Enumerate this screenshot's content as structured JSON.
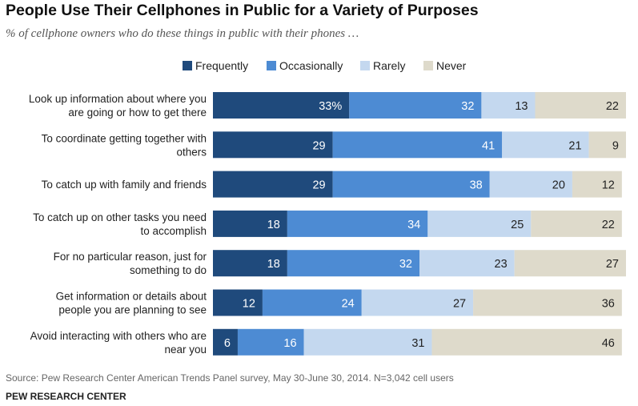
{
  "title": "People Use Their Cellphones in Public for a Variety of Purposes",
  "subtitle": "% of cellphone owners who do these things in public with their phones …",
  "source": "Source: Pew Research Center American Trends Panel survey, May 30-June 30, 2014. N=3,042 cell users",
  "organization": "PEW RESEARCH CENTER",
  "colors": {
    "Frequently": "#1f4a7c",
    "Occasionally": "#4d8bd3",
    "Rarely": "#c4d8ef",
    "Never": "#dedacb"
  },
  "chart_data": {
    "type": "bar",
    "orientation": "horizontal",
    "stacked": true,
    "xlim": [
      0,
      100
    ],
    "grid": false,
    "legend": "top-center",
    "categories": [
      [
        "Look up information about where you",
        "are going or how to get there"
      ],
      [
        "To coordinate getting together with",
        "others"
      ],
      [
        "To catch up with family and friends"
      ],
      [
        "To catch up on other tasks you need",
        "to accomplish"
      ],
      [
        "For no particular reason, just for",
        "something to do"
      ],
      [
        "Get information or details about",
        "people you are planning to see"
      ],
      [
        "Avoid interacting with others who are",
        "near you"
      ]
    ],
    "series": [
      {
        "name": "Frequently",
        "values": [
          33,
          29,
          29,
          18,
          18,
          12,
          6
        ],
        "labels": [
          "33%",
          "29",
          "29",
          "18",
          "18",
          "12",
          "6"
        ]
      },
      {
        "name": "Occasionally",
        "values": [
          32,
          41,
          38,
          34,
          32,
          24,
          16
        ],
        "labels": [
          "32",
          "41",
          "38",
          "34",
          "32",
          "24",
          "16"
        ]
      },
      {
        "name": "Rarely",
        "values": [
          13,
          21,
          20,
          25,
          23,
          27,
          31
        ],
        "labels": [
          "13",
          "21",
          "20",
          "25",
          "23",
          "27",
          "31"
        ]
      },
      {
        "name": "Never",
        "values": [
          22,
          9,
          12,
          22,
          27,
          36,
          46
        ],
        "labels": [
          "22",
          "9",
          "12",
          "22",
          "27",
          "36",
          "46"
        ]
      }
    ]
  }
}
